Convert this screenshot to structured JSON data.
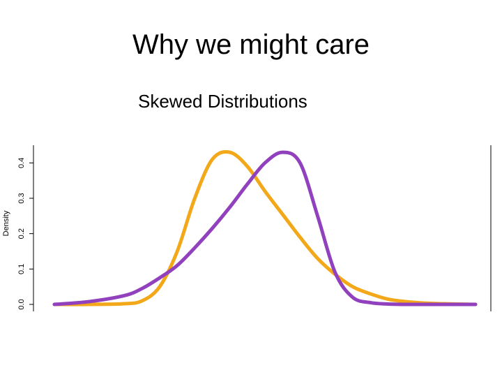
{
  "slide": {
    "title": "Why we might care",
    "subtitle": "Skewed Distributions"
  },
  "chart_data": {
    "type": "line",
    "title": "",
    "xlabel": "",
    "ylabel": "Density",
    "ylim": [
      0,
      0.45
    ],
    "xlim": [
      -6,
      6
    ],
    "y_ticks": [
      "0.0",
      "0.1",
      "0.2",
      "0.3",
      "0.4"
    ],
    "grid": false,
    "series": [
      {
        "color": "#f2a818",
        "x": [
          -6,
          -5,
          -4,
          -3.5,
          -3,
          -2.5,
          -2,
          -1.5,
          -1,
          -0.5,
          0,
          0.5,
          1,
          1.5,
          2,
          2.5,
          3,
          3.5,
          4,
          4.5,
          5,
          6
        ],
        "y": [
          0.0,
          0.0,
          0.002,
          0.01,
          0.05,
          0.15,
          0.3,
          0.41,
          0.43,
          0.39,
          0.32,
          0.255,
          0.19,
          0.13,
          0.085,
          0.05,
          0.03,
          0.015,
          0.008,
          0.004,
          0.002,
          0.0
        ]
      },
      {
        "color": "#9141be",
        "x": [
          -6,
          -5,
          -4,
          -3.5,
          -3,
          -2.5,
          -2,
          -1.5,
          -1,
          -0.5,
          0,
          0.5,
          1,
          1.5,
          2,
          2.5,
          3,
          3.5,
          4,
          4.5,
          5,
          6
        ],
        "y": [
          0.0,
          0.008,
          0.025,
          0.045,
          0.075,
          0.11,
          0.16,
          0.215,
          0.275,
          0.34,
          0.4,
          0.43,
          0.4,
          0.25,
          0.09,
          0.02,
          0.005,
          0.001,
          0.0,
          0.0,
          0.0,
          0.0
        ]
      }
    ]
  }
}
